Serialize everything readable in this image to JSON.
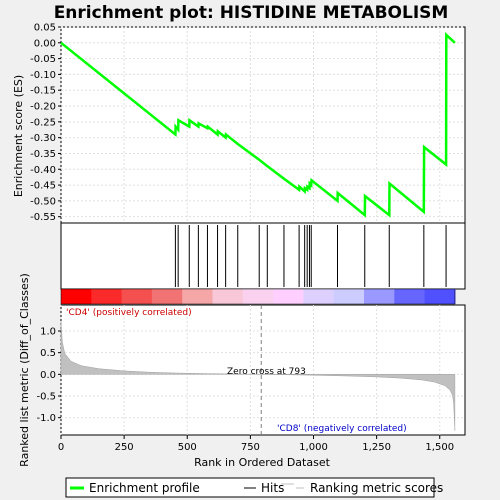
{
  "chart_data": {
    "type": "line",
    "title": "Enrichment plot: HISTIDINE METABOLISM",
    "x_label": "Rank in Ordered Dataset",
    "x_ticks": [
      "0",
      "250",
      "500",
      "750",
      "1,000",
      "1,250",
      "1,500"
    ],
    "xlim": [
      0,
      1600
    ],
    "enrichment": {
      "ylabel": "Enrichment score (ES)",
      "ylim": [
        -0.57,
        0.05
      ],
      "y_ticks": [
        "0.05",
        "0.00",
        "-0.05",
        "-0.10",
        "-0.15",
        "-0.20",
        "-0.25",
        "-0.30",
        "-0.35",
        "-0.40",
        "-0.45",
        "-0.50",
        "-0.55"
      ],
      "series_color": "#00ff00",
      "points": [
        [
          0,
          0.0
        ],
        [
          453,
          -0.29
        ],
        [
          454,
          -0.265
        ],
        [
          464,
          -0.275
        ],
        [
          465,
          -0.245
        ],
        [
          508,
          -0.265
        ],
        [
          509,
          -0.245
        ],
        [
          544,
          -0.265
        ],
        [
          545,
          -0.255
        ],
        [
          580,
          -0.27
        ],
        [
          581,
          -0.265
        ],
        [
          620,
          -0.29
        ],
        [
          621,
          -0.28
        ],
        [
          652,
          -0.3
        ],
        [
          653,
          -0.29
        ],
        [
          700,
          -0.32
        ],
        [
          785,
          -0.37
        ],
        [
          817,
          -0.39
        ],
        [
          883,
          -0.43
        ],
        [
          943,
          -0.465
        ],
        [
          944,
          -0.455
        ],
        [
          965,
          -0.47
        ],
        [
          966,
          -0.46
        ],
        [
          975,
          -0.465
        ],
        [
          976,
          -0.455
        ],
        [
          984,
          -0.46
        ],
        [
          985,
          -0.445
        ],
        [
          991,
          -0.45
        ],
        [
          992,
          -0.435
        ],
        [
          1095,
          -0.5
        ],
        [
          1096,
          -0.475
        ],
        [
          1203,
          -0.545
        ],
        [
          1204,
          -0.485
        ],
        [
          1300,
          -0.545
        ],
        [
          1301,
          -0.445
        ],
        [
          1437,
          -0.535
        ],
        [
          1438,
          -0.33
        ],
        [
          1525,
          -0.385
        ],
        [
          1526,
          0.025
        ],
        [
          1560,
          0.0
        ]
      ]
    },
    "hits": [
      453,
      464,
      508,
      544,
      580,
      620,
      652,
      700,
      785,
      817,
      883,
      943,
      965,
      975,
      984,
      991,
      1095,
      1203,
      1300,
      1437,
      1525
    ],
    "ranked_metric": {
      "ylabel": "Ranked list metric (Diff_of_Classes)",
      "ylim": [
        -1.4,
        1.6
      ],
      "y_ticks": [
        "1.0",
        "0.5",
        "0.0",
        "-0.5",
        "-1.0"
      ],
      "n": 1560,
      "zero_cross": 793,
      "fill_color": "#c0c0c0",
      "points": [
        [
          0,
          1.22
        ],
        [
          5,
          0.75
        ],
        [
          15,
          0.48
        ],
        [
          40,
          0.3
        ],
        [
          80,
          0.2
        ],
        [
          150,
          0.13
        ],
        [
          250,
          0.08
        ],
        [
          350,
          0.05
        ],
        [
          450,
          0.03
        ],
        [
          600,
          0.015
        ],
        [
          793,
          0.0
        ],
        [
          1000,
          -0.02
        ],
        [
          1150,
          -0.04
        ],
        [
          1250,
          -0.06
        ],
        [
          1350,
          -0.09
        ],
        [
          1430,
          -0.13
        ],
        [
          1480,
          -0.18
        ],
        [
          1520,
          -0.26
        ],
        [
          1540,
          -0.36
        ],
        [
          1550,
          -0.48
        ],
        [
          1555,
          -0.65
        ],
        [
          1560,
          -1.3
        ]
      ],
      "annotations": {
        "positive": "'CD4' (positively correlated)",
        "negative": "'CD8' (negatively correlated)",
        "zero_cross": "Zero cross at 793"
      }
    },
    "heatmap_colors": [
      "#ff0000",
      "#fa2a2a",
      "#f55050",
      "#f27373",
      "#f5a6a6",
      "#f8c8d8",
      "#fad2f0",
      "#ffd0ff",
      "#ddd0ff",
      "#ccccff",
      "#9999ff",
      "#6666ff",
      "#5050ff"
    ],
    "legend": {
      "items": [
        "Enrichment profile",
        "Hits",
        "Ranking metric scores"
      ],
      "colors": [
        "#00ff00",
        "#000000",
        "#c0c0c0"
      ],
      "placement": "bottom"
    }
  }
}
